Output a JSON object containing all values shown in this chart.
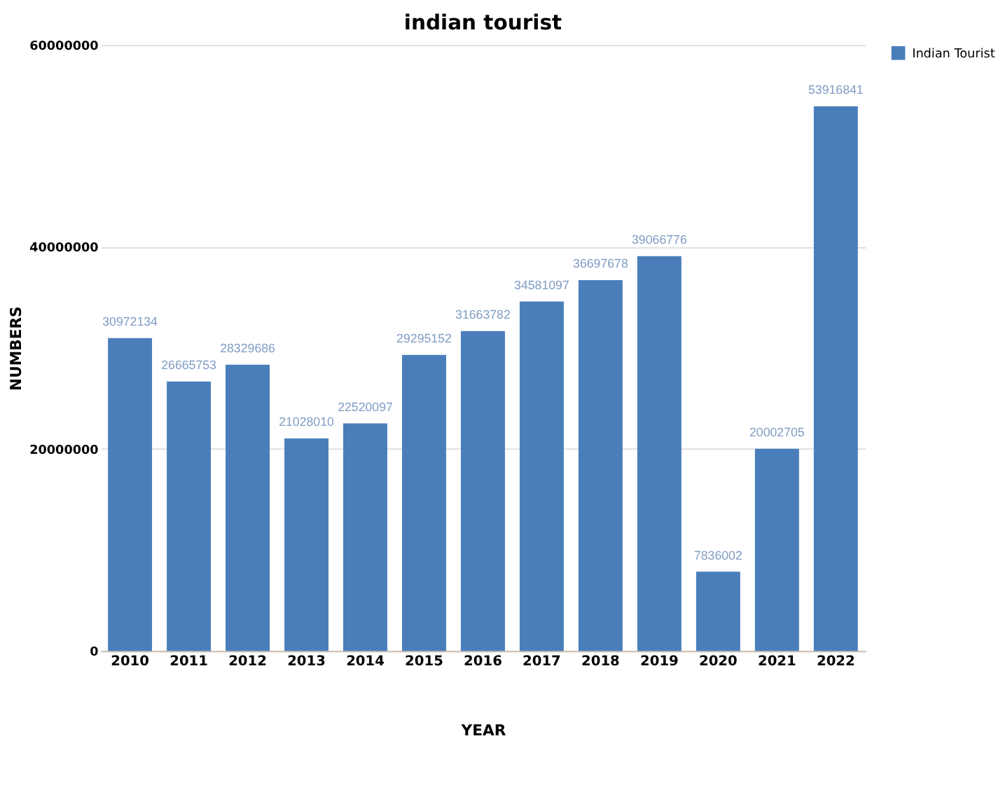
{
  "chart_data": {
    "type": "bar",
    "title": "indian tourist",
    "xlabel": "YEAR",
    "ylabel": "NUMBERS",
    "categories": [
      "2010",
      "2011",
      "2012",
      "2013",
      "2014",
      "2015",
      "2016",
      "2017",
      "2018",
      "2019",
      "2020",
      "2021",
      "2022"
    ],
    "series": [
      {
        "name": "Indian Tourist",
        "color": "#4a7ebb",
        "values": [
          30972134,
          26665753,
          28329686,
          21028010,
          22520097,
          29295152,
          31663782,
          34581097,
          36697678,
          39066776,
          7836002,
          20002705,
          53916841
        ]
      }
    ],
    "ylim": [
      0,
      60000000
    ],
    "yticks": [
      0,
      20000000,
      40000000,
      60000000
    ],
    "grid": "y",
    "legend": "right",
    "data_labels": true
  }
}
